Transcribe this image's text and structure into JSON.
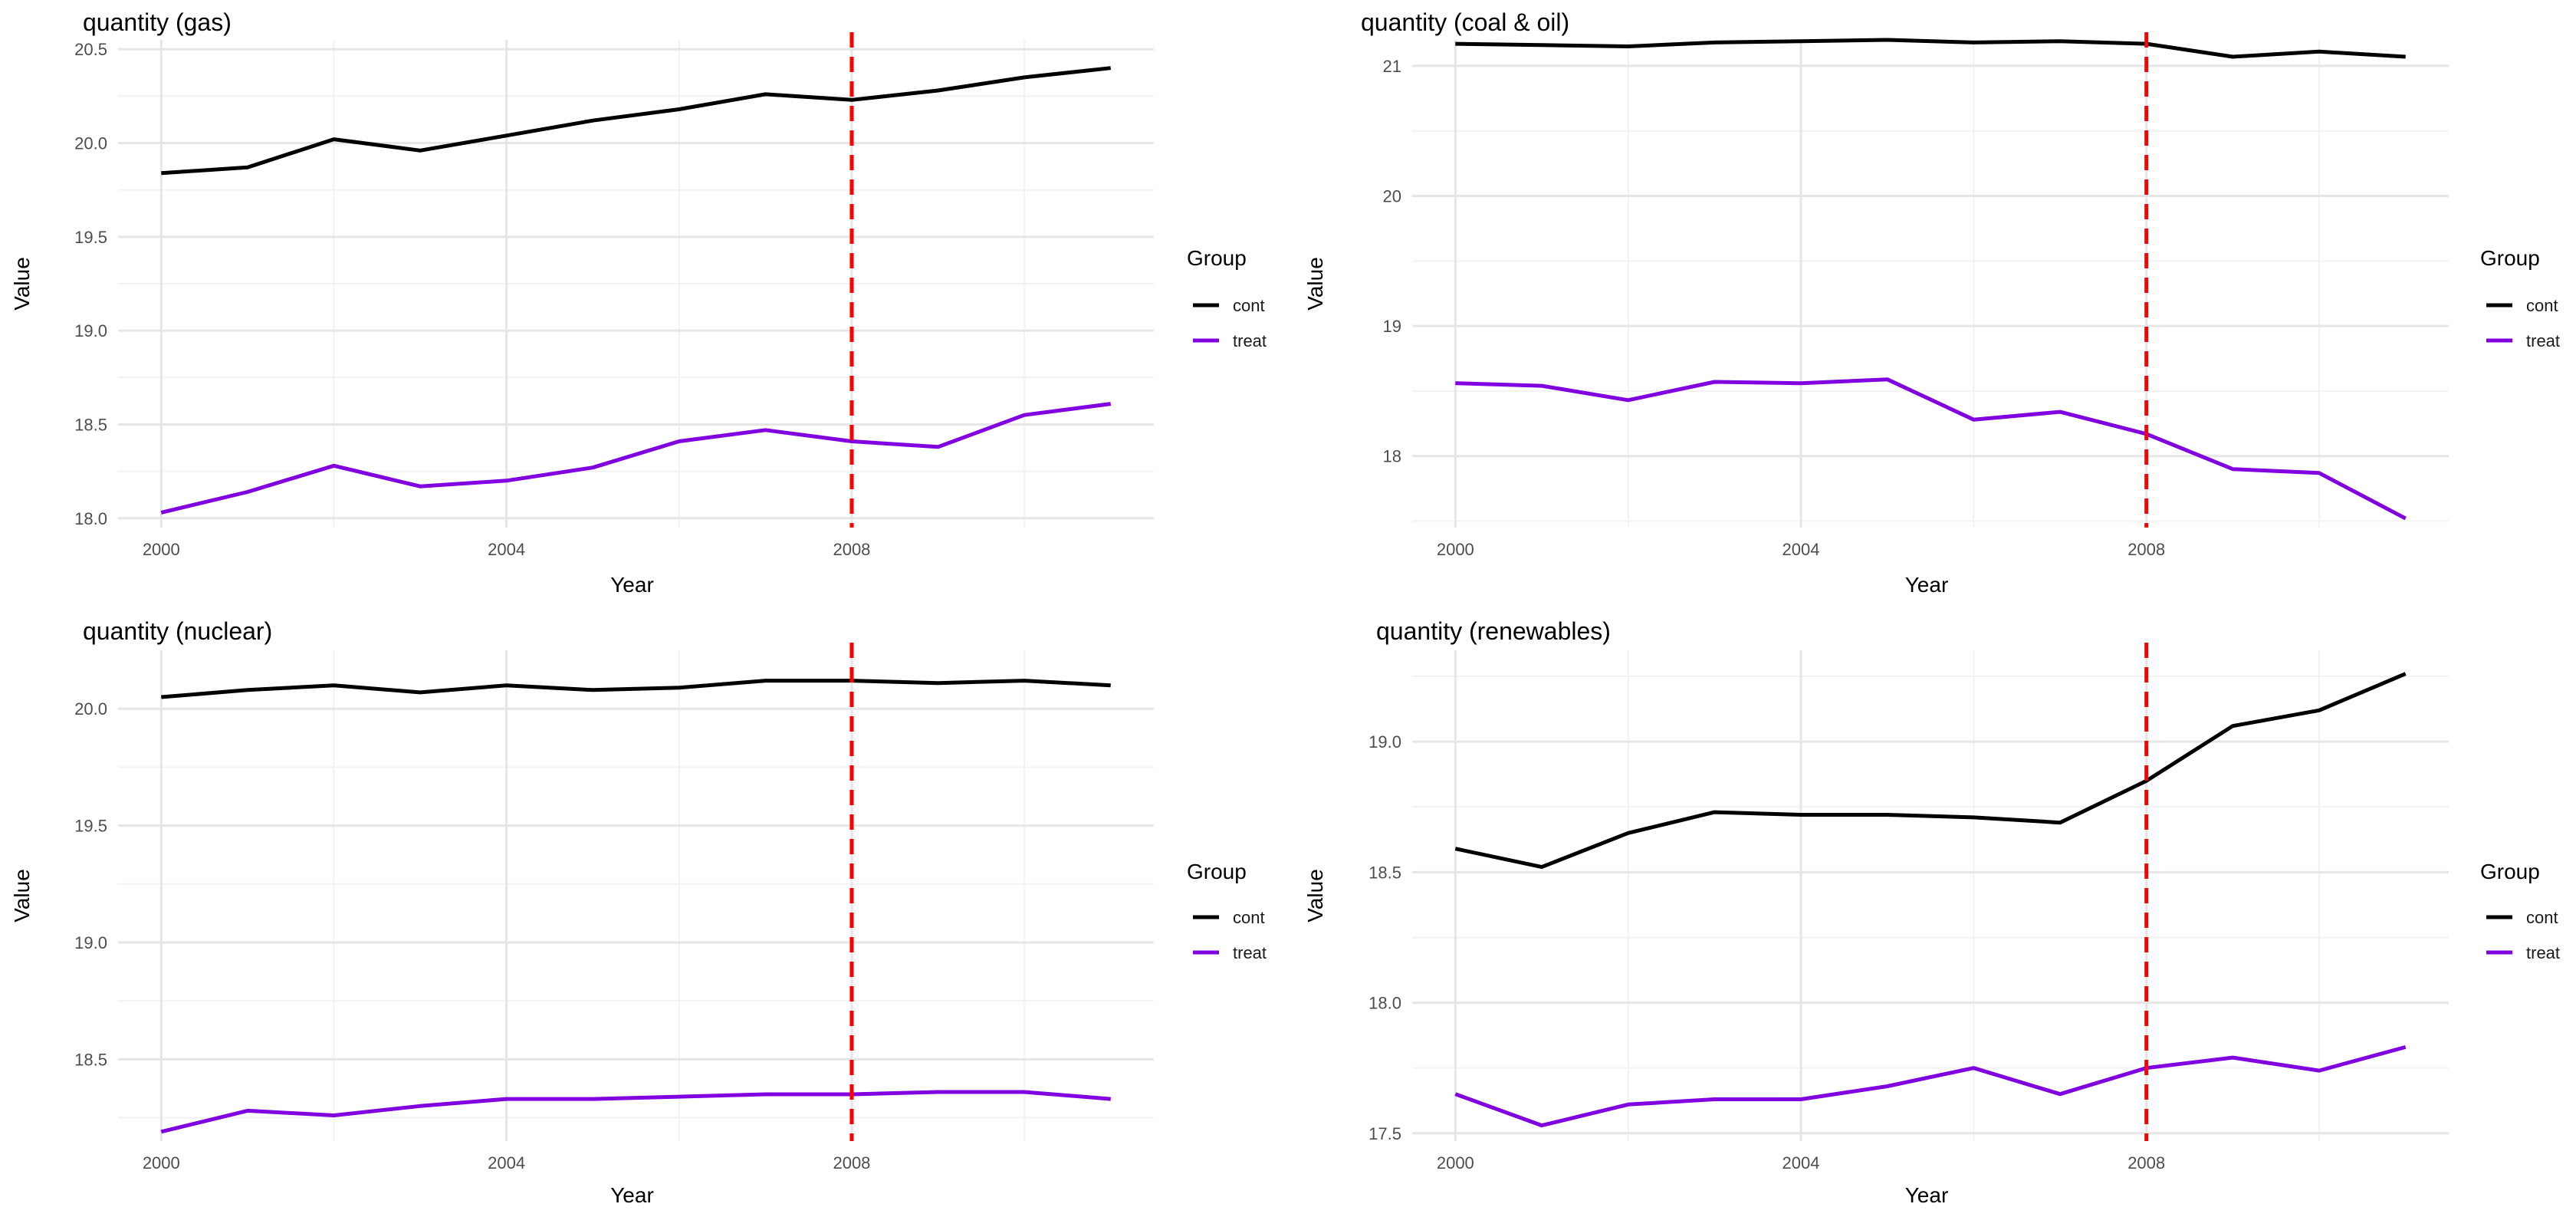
{
  "figure": {
    "legend_title": "Group",
    "colors": {
      "cont": "#000000",
      "treat": "#8000e0",
      "vline": "#ff0000",
      "grid_major": "#e6e6e6",
      "grid_minor": "#f2f2f2"
    }
  },
  "chart_data": [
    {
      "type": "line",
      "title": "quantity (gas)",
      "xlabel": "Year",
      "ylabel": "Value",
      "xlim": [
        1999.5,
        2011.5
      ],
      "ylim": [
        17.95,
        20.55
      ],
      "x_ticks": [
        2000,
        2004,
        2008
      ],
      "x_tick_labels": [
        "2000",
        "2004",
        "2008"
      ],
      "y_ticks": [
        18.0,
        18.5,
        19.0,
        19.5,
        20.0,
        20.5
      ],
      "y_tick_labels": [
        "18.0",
        "18.5",
        "19.0",
        "19.5",
        "20.0",
        "20.5"
      ],
      "vline": 2008,
      "x": [
        2000,
        2001,
        2002,
        2003,
        2004,
        2005,
        2006,
        2007,
        2008,
        2009,
        2010,
        2011
      ],
      "series": [
        {
          "name": "cont",
          "values": [
            19.84,
            19.87,
            20.02,
            19.96,
            20.04,
            20.12,
            20.18,
            20.26,
            20.23,
            20.28,
            20.35,
            20.4
          ]
        },
        {
          "name": "treat",
          "values": [
            18.03,
            18.14,
            18.28,
            18.17,
            18.2,
            18.27,
            18.41,
            18.47,
            18.41,
            18.38,
            18.55,
            18.61
          ]
        }
      ],
      "legend": {
        "title": "Group",
        "entries": [
          "cont",
          "treat"
        ],
        "position": "right"
      }
    },
    {
      "type": "line",
      "title": "quantity (coal & oil)",
      "xlabel": "Year",
      "ylabel": "Value",
      "xlim": [
        1999.5,
        2011.5
      ],
      "ylim": [
        17.45,
        21.2
      ],
      "x_ticks": [
        2000,
        2004,
        2008
      ],
      "x_tick_labels": [
        "2000",
        "2004",
        "2008"
      ],
      "y_ticks": [
        18,
        19,
        20,
        21
      ],
      "y_tick_labels": [
        "18",
        "19",
        "20",
        "21"
      ],
      "vline": 2008,
      "x": [
        2000,
        2001,
        2002,
        2003,
        2004,
        2005,
        2006,
        2007,
        2008,
        2009,
        2010,
        2011
      ],
      "series": [
        {
          "name": "cont",
          "values": [
            21.17,
            21.16,
            21.15,
            21.18,
            21.19,
            21.2,
            21.18,
            21.19,
            21.17,
            21.07,
            21.11,
            21.07
          ]
        },
        {
          "name": "treat",
          "values": [
            18.56,
            18.54,
            18.43,
            18.57,
            18.56,
            18.59,
            18.28,
            18.34,
            18.17,
            17.9,
            17.87,
            17.52
          ]
        }
      ],
      "legend": {
        "title": "Group",
        "entries": [
          "cont",
          "treat"
        ],
        "position": "right"
      }
    },
    {
      "type": "line",
      "title": "quantity (nuclear)",
      "xlabel": "Year",
      "ylabel": "Value",
      "xlim": [
        1999.5,
        2011.5
      ],
      "ylim": [
        18.15,
        20.25
      ],
      "x_ticks": [
        2000,
        2004,
        2008
      ],
      "x_tick_labels": [
        "2000",
        "2004",
        "2008"
      ],
      "y_ticks": [
        18.5,
        19.0,
        19.5,
        20.0
      ],
      "y_tick_labels": [
        "18.5",
        "19.0",
        "19.5",
        "20.0"
      ],
      "vline": 2008,
      "x": [
        2000,
        2001,
        2002,
        2003,
        2004,
        2005,
        2006,
        2007,
        2008,
        2009,
        2010,
        2011
      ],
      "series": [
        {
          "name": "cont",
          "values": [
            20.05,
            20.08,
            20.1,
            20.07,
            20.1,
            20.08,
            20.09,
            20.12,
            20.12,
            20.11,
            20.12,
            20.1
          ]
        },
        {
          "name": "treat",
          "values": [
            18.19,
            18.28,
            18.26,
            18.3,
            18.33,
            18.33,
            18.34,
            18.35,
            18.35,
            18.36,
            18.36,
            18.33
          ]
        }
      ],
      "legend": {
        "title": "Group",
        "entries": [
          "cont",
          "treat"
        ],
        "position": "right"
      }
    },
    {
      "type": "line",
      "title": "quantity (renewables)",
      "xlabel": "Year",
      "ylabel": "Value",
      "xlim": [
        1999.5,
        2011.5
      ],
      "ylim": [
        17.47,
        19.35
      ],
      "x_ticks": [
        2000,
        2004,
        2008
      ],
      "x_tick_labels": [
        "2000",
        "2004",
        "2008"
      ],
      "y_ticks": [
        17.5,
        18.0,
        18.5,
        19.0
      ],
      "y_tick_labels": [
        "17.5",
        "18.0",
        "18.5",
        "19.0"
      ],
      "vline": 2008,
      "x": [
        2000,
        2001,
        2002,
        2003,
        2004,
        2005,
        2006,
        2007,
        2008,
        2009,
        2010,
        2011
      ],
      "series": [
        {
          "name": "cont",
          "values": [
            18.59,
            18.52,
            18.65,
            18.73,
            18.72,
            18.72,
            18.71,
            18.69,
            18.85,
            19.06,
            19.12,
            19.26
          ]
        },
        {
          "name": "treat",
          "values": [
            17.65,
            17.53,
            17.61,
            17.63,
            17.63,
            17.68,
            17.75,
            17.65,
            17.75,
            17.79,
            17.74,
            17.83
          ]
        }
      ],
      "legend": {
        "title": "Group",
        "entries": [
          "cont",
          "treat"
        ],
        "position": "right"
      }
    }
  ]
}
